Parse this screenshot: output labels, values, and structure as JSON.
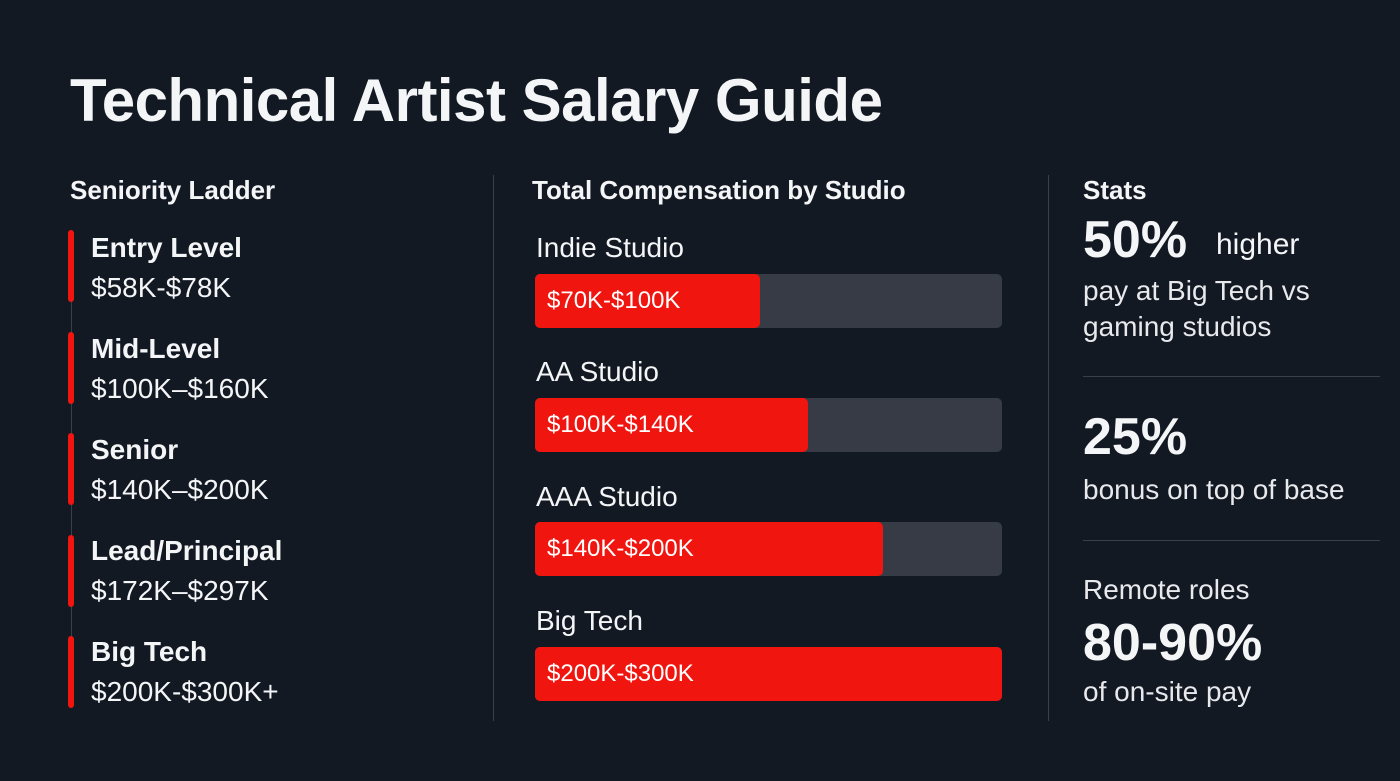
{
  "title": "Technical Artist Salary Guide",
  "ladder": {
    "heading": "Seniority Ladder",
    "items": [
      {
        "level": "Entry Level",
        "range": "$58K-$78K"
      },
      {
        "level": "Mid-Level",
        "range": "$100K–$160K"
      },
      {
        "level": "Senior",
        "range": "$140K–$200K"
      },
      {
        "level": "Lead/Principal",
        "range": "$172K–$297K"
      },
      {
        "level": "Big Tech",
        "range": "$200K-$300K+"
      }
    ]
  },
  "compensation": {
    "heading": "Total Compensation by Studio",
    "studios": [
      {
        "name": "Indie Studio",
        "range": "$70K-$100K"
      },
      {
        "name": "AA Studio",
        "range": "$100K-$140K"
      },
      {
        "name": "AAA Studio",
        "range": "$140K-$200K"
      },
      {
        "name": "Big Tech",
        "range": "$200K-$300K"
      }
    ]
  },
  "stats": {
    "heading": "Stats",
    "items": [
      {
        "value": "50%",
        "suffix": "higher",
        "text": "pay at Big Tech vs gaming studios"
      },
      {
        "value": "25%",
        "text": "bonus on top of base"
      },
      {
        "prefix": "Remote roles",
        "value": "80-90%",
        "text": "of on-site pay"
      }
    ]
  }
}
